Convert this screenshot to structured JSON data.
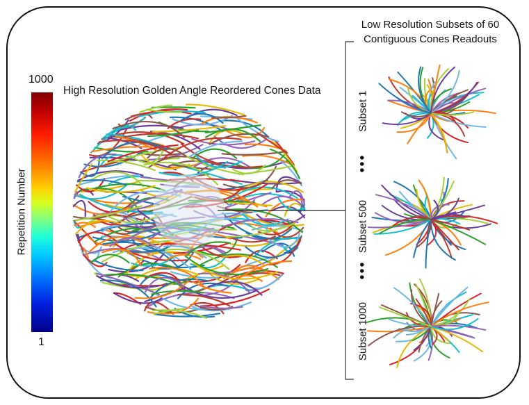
{
  "colorbar": {
    "label": "Repetition Number",
    "max_label": "1000",
    "min_label": "1",
    "colors": [
      "#7f0000",
      "#ff1e00",
      "#ff6a00",
      "#ffd000",
      "#80ff80",
      "#20ffd8",
      "#00c8ff",
      "#0070ff",
      "#00008a"
    ]
  },
  "main": {
    "title": "High Resolution Golden Angle Reordered Cones Data"
  },
  "subsets_panel": {
    "title": "Low Resolution Subsets of 60 Contiguous Cones Readouts",
    "ellipsis_symbol": "•••",
    "subsets": [
      {
        "label": "Subset 1"
      },
      {
        "label": "Subset 500"
      },
      {
        "label": "Subset 1000"
      }
    ]
  },
  "palette": [
    "#d62728",
    "#1f77b4",
    "#ff7f0e",
    "#2ca02c",
    "#9467bd",
    "#e6b800",
    "#17becf",
    "#8c564b",
    "#6fb7e6",
    "#a3d13c",
    "#c0392b",
    "#6a3d9a"
  ]
}
